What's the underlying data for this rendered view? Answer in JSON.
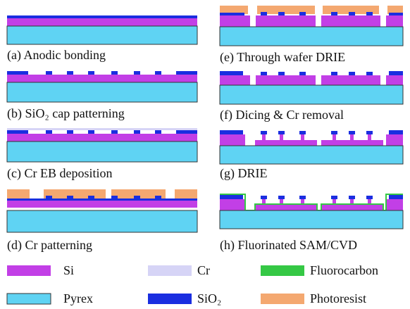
{
  "steps": [
    {
      "caption": "(a) Anodic bonding"
    },
    {
      "caption": "(b) SiO₂ cap patterning"
    },
    {
      "caption": "(c) Cr EB deposition"
    },
    {
      "caption": "(d) Cr patterning"
    },
    {
      "caption": "(e) Through wafer DRIE"
    },
    {
      "caption": "(f) Dicing & Cr removal"
    },
    {
      "caption": "(g) DRIE"
    },
    {
      "caption": "(h) Fluorinated SAM/CVD"
    }
  ],
  "legend": [
    {
      "label": "Si"
    },
    {
      "label": "Cr"
    },
    {
      "label": "Fluorocarbon"
    },
    {
      "label": "Pyrex"
    },
    {
      "label": "SiO₂"
    },
    {
      "label": "Photoresist"
    }
  ]
}
